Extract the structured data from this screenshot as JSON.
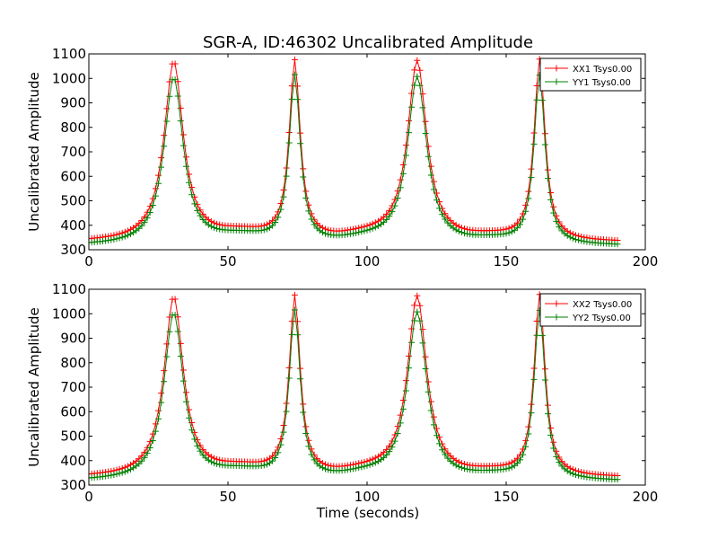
{
  "figure": {
    "title": "SGR-A, ID:46302 Uncalibrated Amplitude",
    "xlabel": "Time (seconds)"
  },
  "chart_data": [
    {
      "type": "line",
      "ylabel": "Uncalibrated Amplitude",
      "xlim": [
        0,
        200
      ],
      "ylim": [
        300,
        1100
      ],
      "xticks": [
        0,
        50,
        100,
        150,
        200
      ],
      "yticks": [
        300,
        400,
        500,
        600,
        700,
        800,
        900,
        1000,
        1100
      ],
      "legend_position": "top-right",
      "x_range": [
        0,
        190
      ],
      "x_step": 1,
      "series": [
        {
          "name": "XX1 Tsys0.00",
          "color": "#ff0000",
          "marker": "+",
          "baseline": 330,
          "peaks": [
            {
              "x": 30.5,
              "height": 735,
              "width": 4.2
            },
            {
              "x": 74,
              "height": 730,
              "width": 2.4
            },
            {
              "x": 118,
              "height": 735,
              "width": 4.2
            },
            {
              "x": 162,
              "height": 740,
              "width": 2.4
            }
          ]
        },
        {
          "name": "YY1 Tsys0.00",
          "color": "#008000",
          "marker": "+",
          "baseline": 315,
          "peaks": [
            {
              "x": 30.5,
              "height": 685,
              "width": 4.2
            },
            {
              "x": 74,
              "height": 685,
              "width": 2.4
            },
            {
              "x": 118,
              "height": 685,
              "width": 4.2
            },
            {
              "x": 162,
              "height": 690,
              "width": 2.4
            }
          ]
        }
      ]
    },
    {
      "type": "line",
      "ylabel": "Uncalibrated Amplitude",
      "xlim": [
        0,
        200
      ],
      "ylim": [
        300,
        1100
      ],
      "xticks": [
        0,
        50,
        100,
        150,
        200
      ],
      "yticks": [
        300,
        400,
        500,
        600,
        700,
        800,
        900,
        1000,
        1100
      ],
      "legend_position": "top-right",
      "x_range": [
        0,
        190
      ],
      "x_step": 1,
      "series": [
        {
          "name": "XX2 Tsys0.00",
          "color": "#ff0000",
          "marker": "+",
          "baseline": 330,
          "peaks": [
            {
              "x": 30.5,
              "height": 735,
              "width": 4.2
            },
            {
              "x": 74,
              "height": 730,
              "width": 2.4
            },
            {
              "x": 118,
              "height": 735,
              "width": 4.2
            },
            {
              "x": 162,
              "height": 740,
              "width": 2.4
            }
          ]
        },
        {
          "name": "YY2 Tsys0.00",
          "color": "#008000",
          "marker": "+",
          "baseline": 315,
          "peaks": [
            {
              "x": 30.5,
              "height": 685,
              "width": 4.2
            },
            {
              "x": 74,
              "height": 685,
              "width": 2.4
            },
            {
              "x": 118,
              "height": 685,
              "width": 4.2
            },
            {
              "x": 162,
              "height": 690,
              "width": 2.4
            }
          ]
        }
      ]
    }
  ]
}
